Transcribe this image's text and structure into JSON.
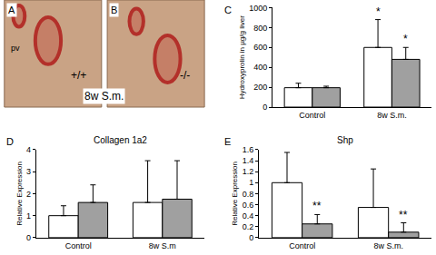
{
  "image_panels": [
    {
      "label": "A",
      "texts": [
        "pv",
        "+/+"
      ]
    },
    {
      "label": "B",
      "texts": [
        "-/-"
      ]
    }
  ],
  "image_caption": "8w S.m.",
  "chart_data": [
    {
      "type": "bar",
      "y_label": "Hydroxyprolin in µg/g liver",
      "categories": [
        "Control",
        "8w S.m."
      ],
      "series": [
        {
          "color": "#ffffff",
          "values": [
            195,
            600
          ],
          "errors": [
            45,
            280
          ]
        },
        {
          "color": "#a0a0a0",
          "values": [
            195,
            480
          ],
          "errors": [
            15,
            120
          ]
        }
      ],
      "ylim": [
        0,
        1000
      ],
      "yticks": [
        0,
        200,
        400,
        600,
        800,
        1000
      ],
      "grid": false,
      "annotations": [
        {
          "text": "C"
        },
        {
          "text": "*",
          "category": "8w S.m.",
          "series": 0
        },
        {
          "text": "*",
          "category": "8w S.m.",
          "series": 1
        }
      ]
    },
    {
      "type": "bar",
      "title": "Collagen 1a2",
      "y_label": "Relative Expression",
      "categories": [
        "Control",
        "8w S.m"
      ],
      "series": [
        {
          "color": "#ffffff",
          "values": [
            1.0,
            1.6
          ],
          "errors": [
            0.45,
            1.9
          ]
        },
        {
          "color": "#a0a0a0",
          "values": [
            1.6,
            1.75
          ],
          "errors": [
            0.8,
            1.75
          ]
        }
      ],
      "ylim": [
        0,
        4
      ],
      "yticks": [
        0,
        1,
        2,
        3,
        4
      ],
      "grid": false,
      "annotations": [
        {
          "text": "D"
        }
      ]
    },
    {
      "type": "bar",
      "title": "Shp",
      "y_label": "Relative Expression",
      "categories": [
        "Control",
        "8w S.m."
      ],
      "series": [
        {
          "color": "#ffffff",
          "values": [
            1.0,
            0.55
          ],
          "errors": [
            0.55,
            0.7
          ]
        },
        {
          "color": "#a0a0a0",
          "values": [
            0.25,
            0.1
          ],
          "errors": [
            0.17,
            0.17
          ]
        }
      ],
      "ylim": [
        0,
        1.6
      ],
      "yticks": [
        0,
        0.2,
        0.4,
        0.6,
        0.8,
        1,
        1.2,
        1.4,
        1.6
      ],
      "grid": false,
      "annotations": [
        {
          "text": "E"
        },
        {
          "text": "**",
          "category": "Control",
          "series": 1
        },
        {
          "text": "**",
          "category": "8w S.m.",
          "series": 1
        }
      ]
    }
  ]
}
